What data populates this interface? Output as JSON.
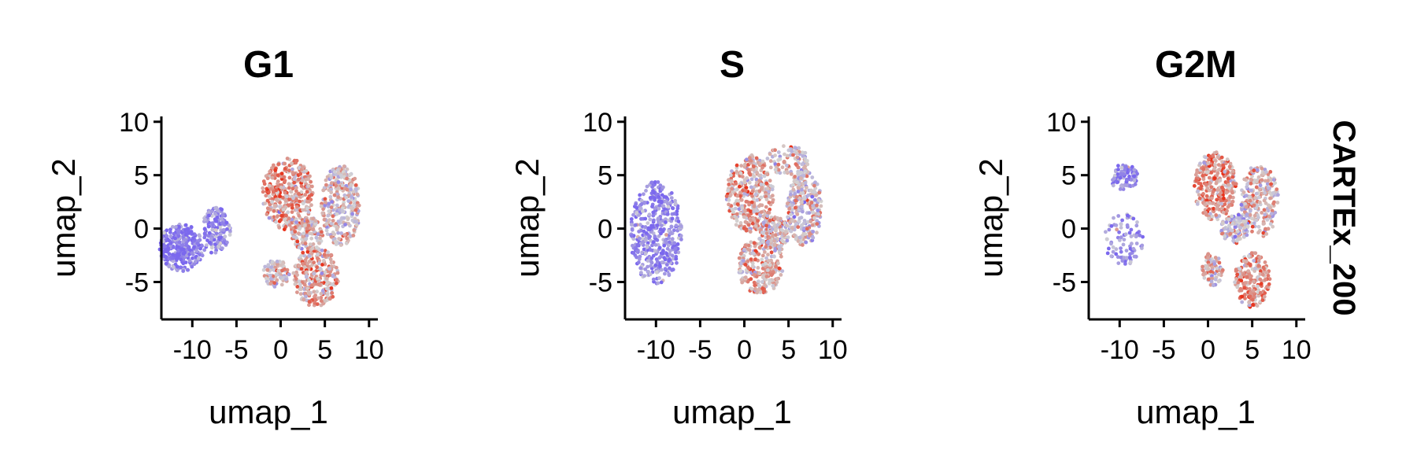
{
  "chart_data": {
    "type": "scatter",
    "facet_row_label": "CARTEx_200",
    "xlabel": "umap_1",
    "ylabel": "umap_2",
    "xlim": [
      -13.5,
      11
    ],
    "ylim": [
      -8.5,
      10.5
    ],
    "x_ticks": [
      -10,
      -5,
      0,
      5,
      10
    ],
    "x_tick_labels": [
      "-10",
      "-5",
      "0",
      "5",
      "10"
    ],
    "y_ticks": [
      10,
      5,
      0,
      -5
    ],
    "y_tick_labels": [
      "10",
      "5",
      "0",
      "-5"
    ],
    "color_scale": {
      "low": "#7b68ee",
      "mid": "#d3d3d3",
      "high": "#e8311a"
    },
    "panels": [
      {
        "title": "G1",
        "clusters": [
          {
            "cx": -11.2,
            "cy": -1.8,
            "rx": 2.6,
            "ry": 2.2,
            "n": 320,
            "score": -0.85
          },
          {
            "cx": -7.3,
            "cy": -0.2,
            "rx": 1.6,
            "ry": 2.2,
            "n": 160,
            "score": -0.7
          },
          {
            "cx": 0.8,
            "cy": 3.2,
            "rx": 2.9,
            "ry": 3.4,
            "n": 380,
            "score": 0.35
          },
          {
            "cx": -0.5,
            "cy": -4.2,
            "rx": 1.5,
            "ry": 1.3,
            "n": 90,
            "score": 0.1
          },
          {
            "cx": 6.8,
            "cy": 2.2,
            "rx": 2.2,
            "ry": 3.8,
            "n": 300,
            "score": 0.05
          },
          {
            "cx": 4.0,
            "cy": -4.5,
            "rx": 2.6,
            "ry": 2.8,
            "n": 280,
            "score": 0.3
          },
          {
            "cx": 3.0,
            "cy": -0.5,
            "rx": 1.8,
            "ry": 1.6,
            "n": 140,
            "score": 0.1
          }
        ]
      },
      {
        "title": "S",
        "clusters": [
          {
            "cx": -10.0,
            "cy": -0.4,
            "rx": 2.9,
            "ry": 4.8,
            "n": 420,
            "score": -0.7
          },
          {
            "cx": 0.6,
            "cy": 3.3,
            "rx": 2.7,
            "ry": 3.6,
            "n": 360,
            "score": 0.25
          },
          {
            "cx": 1.8,
            "cy": -3.5,
            "rx": 2.6,
            "ry": 2.6,
            "n": 250,
            "score": 0.2
          },
          {
            "cx": 6.8,
            "cy": 2.0,
            "rx": 2.0,
            "ry": 3.6,
            "n": 280,
            "score": -0.05
          },
          {
            "cx": 5.0,
            "cy": 6.4,
            "rx": 2.4,
            "ry": 1.4,
            "n": 90,
            "score": 0.0
          },
          {
            "cx": 3.5,
            "cy": -0.5,
            "rx": 1.8,
            "ry": 1.6,
            "n": 150,
            "score": 0.05
          }
        ]
      },
      {
        "title": "G2M",
        "clusters": [
          {
            "cx": -9.5,
            "cy": 4.8,
            "rx": 1.6,
            "ry": 1.2,
            "n": 90,
            "score": -0.75
          },
          {
            "cx": -9.5,
            "cy": -1.0,
            "rx": 2.2,
            "ry": 2.4,
            "n": 90,
            "score": -0.6
          },
          {
            "cx": 0.8,
            "cy": 4.0,
            "rx": 2.4,
            "ry": 3.2,
            "n": 300,
            "score": 0.4
          },
          {
            "cx": 5.8,
            "cy": 2.6,
            "rx": 2.2,
            "ry": 3.4,
            "n": 240,
            "score": 0.05
          },
          {
            "cx": 5.0,
            "cy": -4.8,
            "rx": 2.0,
            "ry": 2.6,
            "n": 200,
            "score": 0.35
          },
          {
            "cx": 0.5,
            "cy": -3.8,
            "rx": 1.2,
            "ry": 1.6,
            "n": 80,
            "score": 0.15
          },
          {
            "cx": 3.0,
            "cy": 0.0,
            "rx": 1.6,
            "ry": 1.4,
            "n": 120,
            "score": -0.05
          }
        ]
      }
    ]
  }
}
